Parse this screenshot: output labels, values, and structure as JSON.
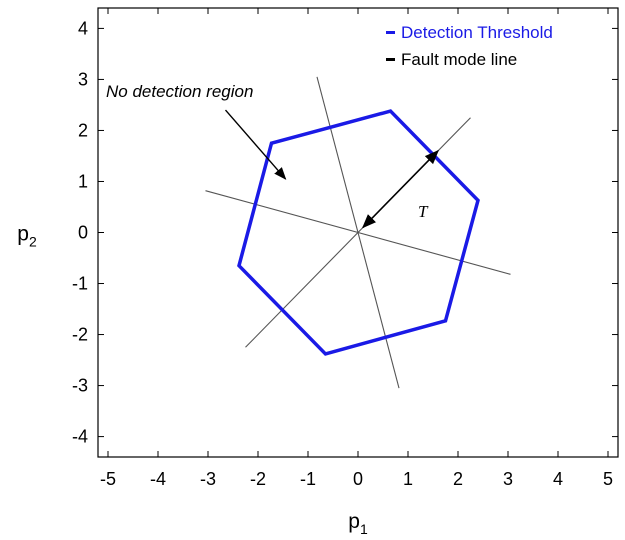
{
  "chart_data": {
    "type": "line",
    "xlabel": "p",
    "xlabel_sub": "1",
    "ylabel": "p",
    "ylabel_sub": "2",
    "xlim": [
      -5.2,
      5.2
    ],
    "ylim": [
      -4.4,
      4.4
    ],
    "xticks": [
      -5,
      -4,
      -3,
      -2,
      -1,
      0,
      1,
      2,
      3,
      4,
      5
    ],
    "yticks": [
      -4,
      -3,
      -2,
      -1,
      0,
      1,
      2,
      3,
      4
    ],
    "grid": false,
    "legend_position": "top-right",
    "series": [
      {
        "name": "Detection Threshold",
        "color": "#1a1ae6",
        "closed": true,
        "points": [
          [
            0.65,
            2.38
          ],
          [
            2.4,
            0.63
          ],
          [
            1.75,
            -1.73
          ],
          [
            -0.65,
            -2.38
          ],
          [
            -2.38,
            -0.65
          ],
          [
            -1.73,
            1.75
          ]
        ]
      },
      {
        "name": "Fault mode line",
        "color": "#000000",
        "lines": [
          [
            [
              -3.05,
              0.82
            ],
            [
              3.05,
              -0.82
            ]
          ],
          [
            [
              -2.25,
              -2.25
            ],
            [
              2.25,
              2.25
            ]
          ],
          [
            [
              -0.82,
              3.05
            ],
            [
              0.82,
              -3.05
            ]
          ]
        ]
      }
    ],
    "annotations": [
      {
        "text": "No detection region",
        "arrow_from": [
          -2.65,
          2.4
        ],
        "arrow_to": [
          -1.45,
          1.05
        ]
      },
      {
        "text": "T",
        "position": [
          1.2,
          0.3
        ],
        "arrow_from": [
          1.6,
          1.6
        ],
        "arrow_to": [
          0.1,
          0.1
        ],
        "double_headed": true
      }
    ]
  }
}
